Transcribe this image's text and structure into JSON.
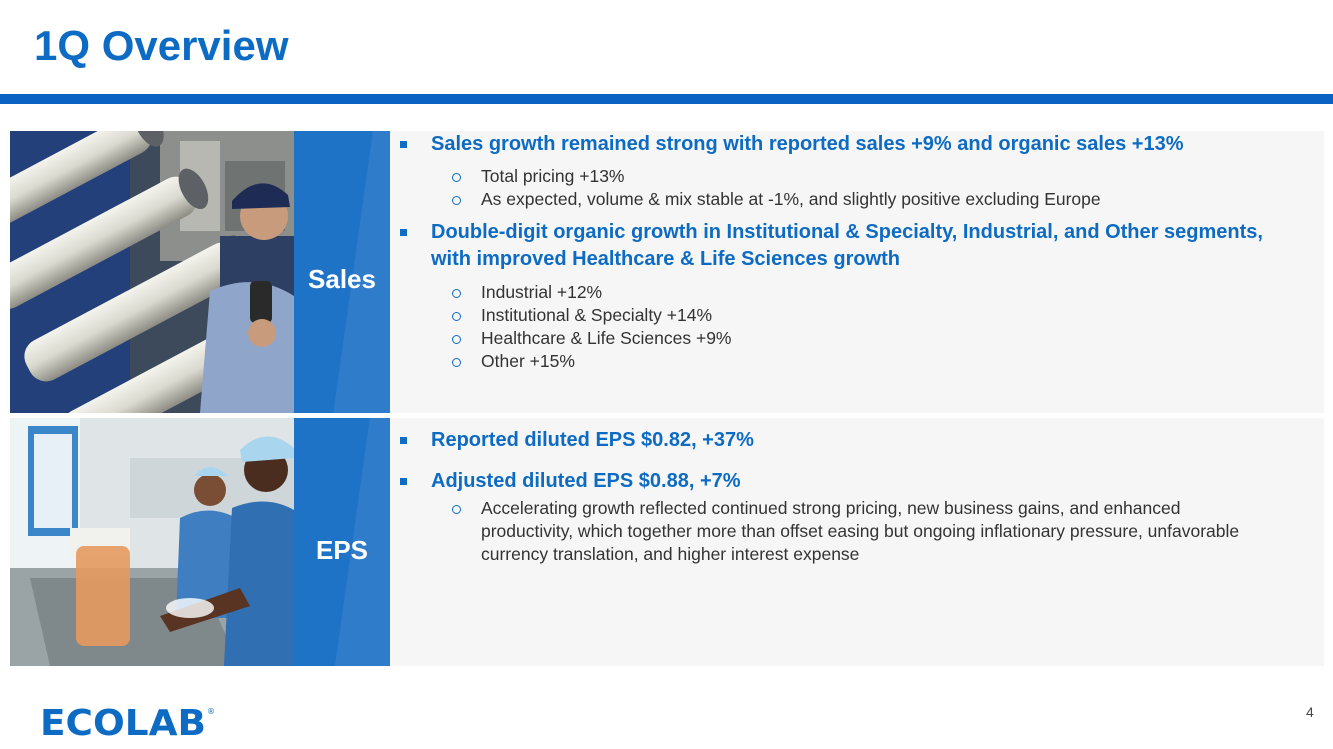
{
  "slide": {
    "title": "1Q Overview",
    "page_number": "4"
  },
  "sales": {
    "label": "Sales",
    "bullets": [
      {
        "text": "Sales growth remained strong with reported sales +9% and organic sales +13%",
        "sub": [
          "Total pricing +13%",
          "As expected, volume & mix stable at -1%, and slightly positive excluding Europe"
        ]
      },
      {
        "text": "Double-digit organic growth in Institutional & Specialty, Industrial, and Other segments, with improved Healthcare & Life Sciences growth",
        "sub": [
          "Industrial +12%",
          "Institutional & Specialty +14%",
          "Healthcare & Life Sciences +9%",
          "Other +15%"
        ]
      }
    ]
  },
  "eps": {
    "label": "EPS",
    "bullets": [
      {
        "text": "Reported diluted EPS $0.82, +37%",
        "sub": []
      },
      {
        "text": "Adjusted diluted EPS $0.88, +7%",
        "sub": [
          "Accelerating growth reflected continued strong pricing, new business gains, and enhanced productivity, which together more than offset easing but ongoing inflationary pressure, unfavorable currency translation, and higher interest expense"
        ]
      }
    ]
  },
  "footer": {
    "logo_text": "ECOLAB",
    "logo_mark": "®"
  },
  "colors": {
    "brand_blue": "#0d6bc4",
    "band_blue": "#1f73c6",
    "content_bg": "#f6f6f6"
  }
}
